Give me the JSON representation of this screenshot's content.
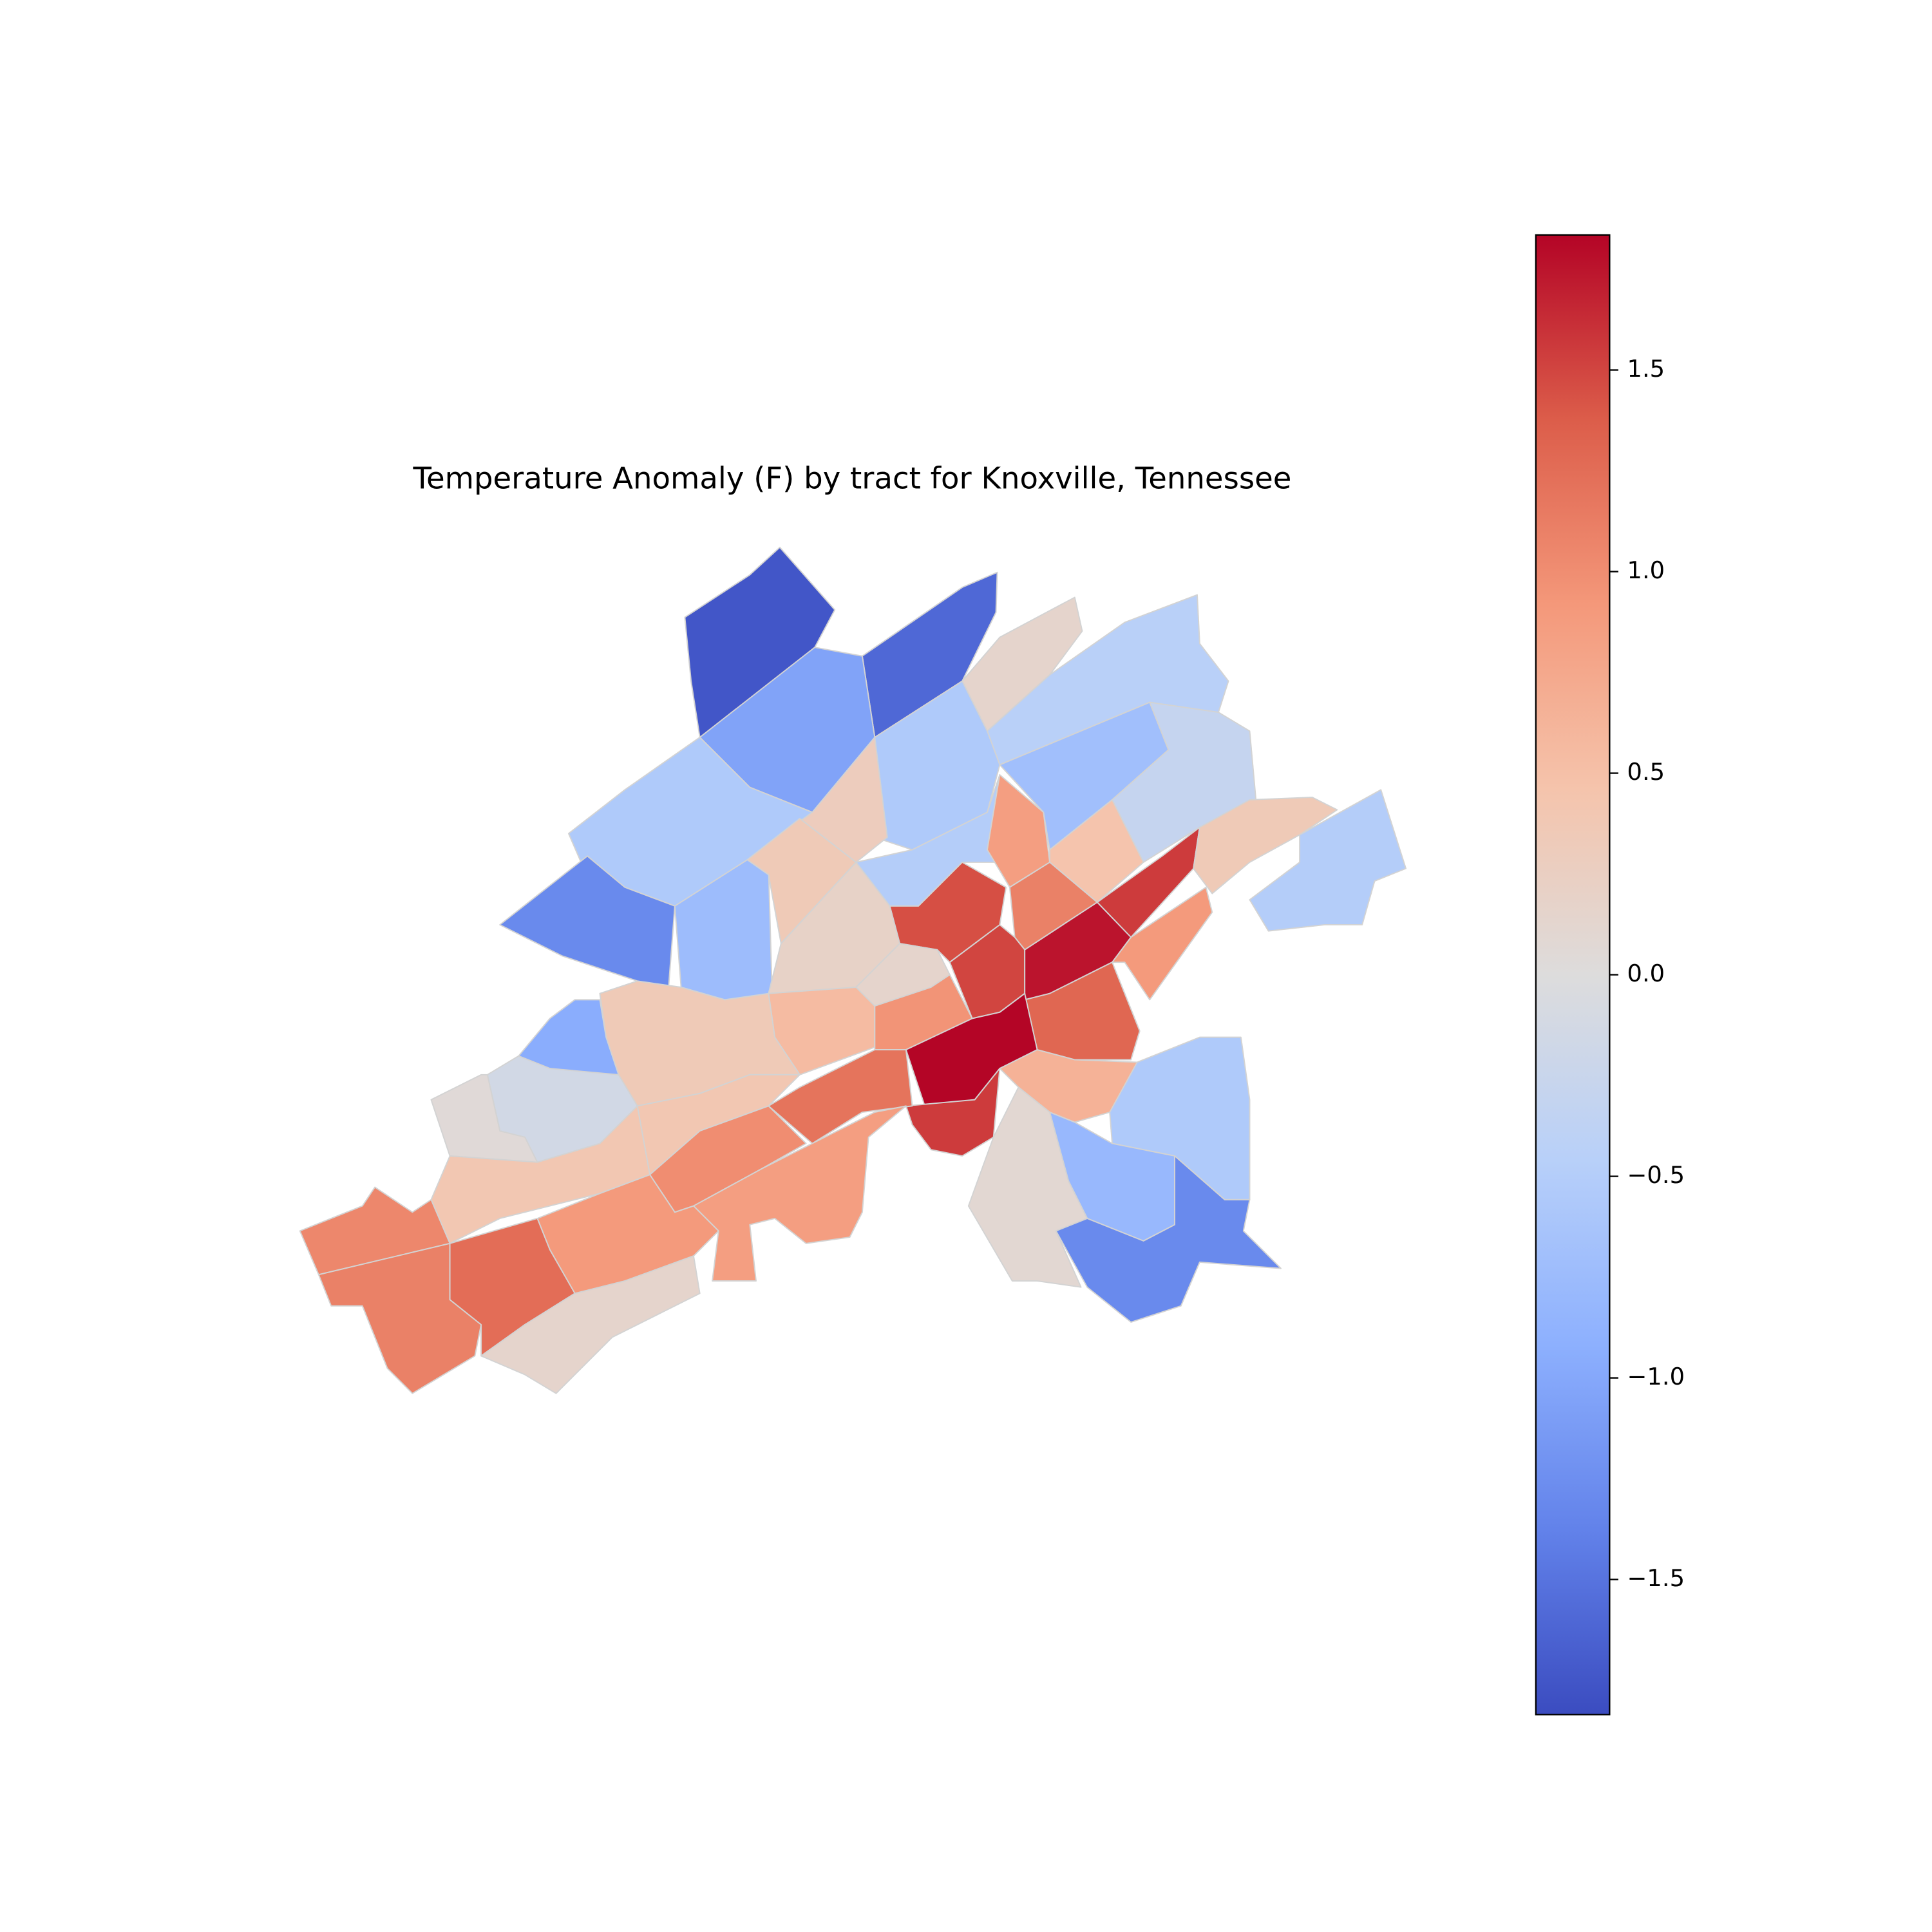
{
  "chart_data": {
    "type": "choropleth",
    "title": "Temperature Anomaly (F) by tract for Knoxville, Tennessee",
    "colormap": "coolwarm",
    "clim": [
      -1.835,
      1.835
    ],
    "cticks": [
      {
        "value": -1.5,
        "label": "−1.5"
      },
      {
        "value": -1.0,
        "label": "−1.0"
      },
      {
        "value": -0.5,
        "label": "−0.5"
      },
      {
        "value": 0,
        "label": "0.0"
      },
      0.5,
      {
        "value": 1.0,
        "label": "1.0"
      },
      1.5
    ],
    "edgecolor": "#d3d3d3",
    "values": [
      -1.75,
      -1.6,
      -1.05,
      0.15,
      -0.45,
      -0.55,
      0.3,
      -0.55,
      -1.3,
      -0.75,
      0.35,
      -0.5,
      0.85,
      -0.7,
      -0.3,
      0.45,
      1.45,
      1.1,
      1.55,
      0.35,
      -0.5,
      0.2,
      1.5,
      1.75,
      0.9,
      0.15,
      0.55,
      0.95,
      1.3,
      1.83,
      1.55,
      0.65,
      -0.55,
      -0.8,
      0.1,
      -1.3,
      0.35,
      -0.95,
      -0.15,
      0.05,
      0.4,
      0.4,
      1.0,
      1.2,
      0.85,
      0.9,
      1.05,
      1.1,
      1.25,
      0.15
    ]
  }
}
